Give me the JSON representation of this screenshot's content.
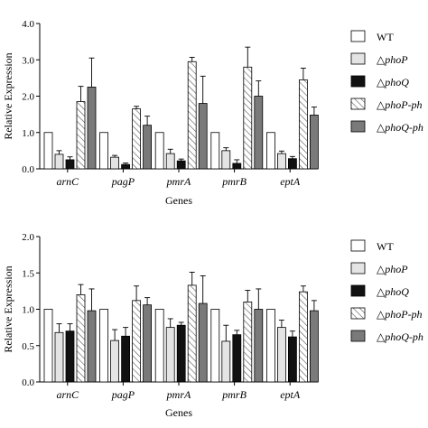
{
  "colors": {
    "WT": "#ffffff",
    "phoP": "#e4e4e4",
    "phoQ": "#111111",
    "phoP_comp": "hatch",
    "phoQ_comp": "#7a7a7a",
    "stroke": "#000000"
  },
  "legend": [
    {
      "key": "WT",
      "prefix": "",
      "name": "WT",
      "italic": false
    },
    {
      "key": "phoP",
      "prefix": "△",
      "name": "phoP",
      "italic": true
    },
    {
      "key": "phoQ",
      "prefix": "△",
      "name": "phoQ",
      "italic": true
    },
    {
      "key": "phoP_comp",
      "prefix": "△",
      "name": "phoP-ph",
      "italic": true
    },
    {
      "key": "phoQ_comp",
      "prefix": "△",
      "name": "phoQ-ph",
      "italic": true
    }
  ],
  "chart_data": [
    {
      "type": "bar",
      "categories": [
        "arnC",
        "pagP",
        "pmrA",
        "pmrB",
        "eptA"
      ],
      "xlabel": "Genes",
      "ylabel": "Relative Expression",
      "ylim": [
        0,
        4.0
      ],
      "yticks": [
        "0.0",
        "1.0",
        "2.0",
        "3.0",
        "4.0"
      ],
      "series": [
        {
          "key": "WT",
          "values": [
            1.0,
            1.0,
            1.0,
            1.0,
            1.0
          ],
          "errors": [
            0,
            0,
            0,
            0,
            0
          ]
        },
        {
          "key": "phoP",
          "values": [
            0.4,
            0.32,
            0.42,
            0.5,
            0.42
          ],
          "errors": [
            0.1,
            0.05,
            0.12,
            0.08,
            0.07
          ]
        },
        {
          "key": "phoQ",
          "values": [
            0.25,
            0.12,
            0.22,
            0.15,
            0.28
          ],
          "errors": [
            0.08,
            0.04,
            0.05,
            0.1,
            0.06
          ]
        },
        {
          "key": "phoP_comp",
          "values": [
            1.85,
            1.65,
            2.95,
            2.8,
            2.45
          ],
          "errors": [
            0.42,
            0.07,
            0.12,
            0.55,
            0.32
          ]
        },
        {
          "key": "phoQ_comp",
          "values": [
            2.25,
            1.2,
            1.8,
            2.0,
            1.48
          ],
          "errors": [
            0.8,
            0.25,
            0.75,
            0.42,
            0.22
          ]
        }
      ]
    },
    {
      "type": "bar",
      "categories": [
        "arnC",
        "pagP",
        "pmrA",
        "pmrB",
        "eptA"
      ],
      "xlabel": "Genes",
      "ylabel": "Relative Expression",
      "ylim": [
        0,
        2.0
      ],
      "yticks": [
        "0.0",
        "0.5",
        "1.0",
        "1.5",
        "2.0"
      ],
      "series": [
        {
          "key": "WT",
          "values": [
            1.0,
            1.0,
            1.0,
            1.0,
            1.0
          ],
          "errors": [
            0,
            0,
            0,
            0,
            0
          ]
        },
        {
          "key": "phoP",
          "values": [
            0.68,
            0.57,
            0.75,
            0.56,
            0.75
          ],
          "errors": [
            0.12,
            0.15,
            0.12,
            0.22,
            0.1
          ]
        },
        {
          "key": "phoQ",
          "values": [
            0.7,
            0.63,
            0.78,
            0.65,
            0.62
          ],
          "errors": [
            0.1,
            0.12,
            0.04,
            0.06,
            0.08
          ]
        },
        {
          "key": "phoP_comp",
          "values": [
            1.2,
            1.12,
            1.33,
            1.1,
            1.24
          ],
          "errors": [
            0.14,
            0.2,
            0.18,
            0.16,
            0.08
          ]
        },
        {
          "key": "phoQ_comp",
          "values": [
            0.98,
            1.06,
            1.08,
            1.0,
            0.98
          ],
          "errors": [
            0.3,
            0.1,
            0.38,
            0.28,
            0.14
          ]
        }
      ]
    }
  ]
}
